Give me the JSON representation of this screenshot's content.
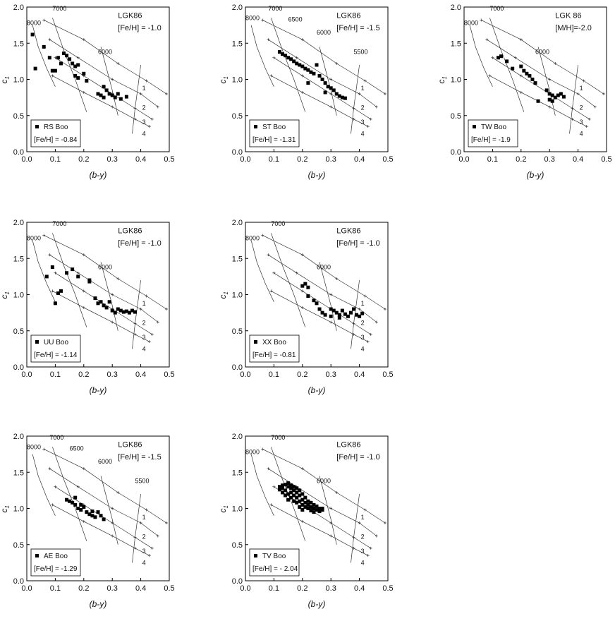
{
  "chart_data": [
    {
      "type": "scatter",
      "star": "RS Boo",
      "metal": "[Fe/H] = -0.84",
      "grid_name": "LGK86",
      "grid_metal": "[Fe/H] = -1.0",
      "xlabel": "(b-y)",
      "ylabel": "c1",
      "xlim": [
        0,
        0.5
      ],
      "ylim": [
        0,
        2.0
      ],
      "xticks": [
        "0.0",
        "0.1",
        "0.2",
        "0.3",
        "0.4",
        "0.5"
      ],
      "yticks": [
        "0.0",
        "0.5",
        "1.0",
        "1.5",
        "2.0"
      ],
      "temp_labels": [
        "8000",
        "7000",
        "6000"
      ],
      "logg_labels": [
        "1",
        "2",
        "3",
        "4"
      ],
      "values": [
        [
          0.02,
          1.62
        ],
        [
          0.06,
          1.45
        ],
        [
          0.08,
          1.3
        ],
        [
          0.1,
          1.12
        ],
        [
          0.11,
          1.3
        ],
        [
          0.12,
          1.22
        ],
        [
          0.13,
          1.36
        ],
        [
          0.14,
          1.33
        ],
        [
          0.15,
          1.28
        ],
        [
          0.16,
          1.22
        ],
        [
          0.17,
          1.18
        ],
        [
          0.18,
          1.2
        ],
        [
          0.17,
          1.05
        ],
        [
          0.18,
          1.02
        ],
        [
          0.2,
          1.08
        ],
        [
          0.21,
          0.98
        ],
        [
          0.25,
          0.8
        ],
        [
          0.26,
          0.78
        ],
        [
          0.27,
          0.9
        ],
        [
          0.27,
          0.75
        ],
        [
          0.28,
          0.85
        ],
        [
          0.29,
          0.8
        ],
        [
          0.3,
          0.78
        ],
        [
          0.31,
          0.75
        ],
        [
          0.32,
          0.8
        ],
        [
          0.33,
          0.73
        ],
        [
          0.35,
          0.76
        ],
        [
          0.03,
          1.15
        ],
        [
          0.09,
          1.12
        ]
      ]
    },
    {
      "type": "scatter",
      "star": "ST Boo",
      "metal": "[Fe/H] = -1.31",
      "grid_name": "LGK86",
      "grid_metal": "[Fe/H] = -1.5",
      "xlabel": "(b-y)",
      "ylabel": "c1",
      "xlim": [
        0,
        0.5
      ],
      "ylim": [
        0,
        2.0
      ],
      "xticks": [
        "0.0",
        "0.1",
        "0.2",
        "0.3",
        "0.4",
        "0.5"
      ],
      "yticks": [
        "0.0",
        "0.5",
        "1.0",
        "1.5",
        "2.0"
      ],
      "temp_labels": [
        "8000",
        "7000",
        "6500",
        "6000",
        "5500"
      ],
      "logg_labels": [
        "1",
        "2",
        "3",
        "4"
      ],
      "values": [
        [
          0.12,
          1.38
        ],
        [
          0.13,
          1.35
        ],
        [
          0.14,
          1.33
        ],
        [
          0.15,
          1.3
        ],
        [
          0.16,
          1.28
        ],
        [
          0.17,
          1.25
        ],
        [
          0.18,
          1.22
        ],
        [
          0.19,
          1.2
        ],
        [
          0.2,
          1.18
        ],
        [
          0.21,
          1.15
        ],
        [
          0.22,
          1.13
        ],
        [
          0.23,
          1.1
        ],
        [
          0.24,
          1.08
        ],
        [
          0.25,
          1.2
        ],
        [
          0.26,
          1.05
        ],
        [
          0.27,
          1.0
        ],
        [
          0.28,
          0.95
        ],
        [
          0.29,
          0.9
        ],
        [
          0.3,
          0.88
        ],
        [
          0.31,
          0.85
        ],
        [
          0.32,
          0.8
        ],
        [
          0.33,
          0.77
        ],
        [
          0.34,
          0.75
        ],
        [
          0.35,
          0.74
        ],
        [
          0.22,
          0.95
        ],
        [
          0.28,
          0.82
        ]
      ]
    },
    {
      "type": "scatter",
      "star": "TW Boo",
      "metal": "[Fe/H] = -1.9",
      "grid_name": "LGK 86",
      "grid_metal": "[M/H]=-2.0",
      "xlabel": "(b-y)",
      "ylabel": "c1",
      "xlim": [
        0,
        0.5
      ],
      "ylim": [
        0,
        2.0
      ],
      "xticks": [
        "0.0",
        "0.1",
        "0.2",
        "0.3",
        "0.4",
        "0.5"
      ],
      "yticks": [
        "0.0",
        "0.5",
        "1.0",
        "1.5",
        "2.0"
      ],
      "temp_labels": [
        "8000",
        "7000",
        "6000"
      ],
      "logg_labels": [
        "1",
        "2",
        "3",
        "4"
      ],
      "values": [
        [
          0.12,
          1.3
        ],
        [
          0.13,
          1.32
        ],
        [
          0.15,
          1.25
        ],
        [
          0.17,
          1.15
        ],
        [
          0.2,
          1.18
        ],
        [
          0.21,
          1.12
        ],
        [
          0.22,
          1.08
        ],
        [
          0.23,
          1.05
        ],
        [
          0.24,
          1.0
        ],
        [
          0.25,
          0.95
        ],
        [
          0.26,
          0.7
        ],
        [
          0.29,
          0.85
        ],
        [
          0.3,
          0.8
        ],
        [
          0.31,
          0.78
        ],
        [
          0.32,
          0.75
        ],
        [
          0.33,
          0.78
        ],
        [
          0.34,
          0.8
        ],
        [
          0.35,
          0.76
        ],
        [
          0.3,
          0.72
        ],
        [
          0.31,
          0.7
        ]
      ]
    },
    {
      "type": "scatter",
      "star": "UU Boo",
      "metal": "[Fe/H] = -1.14",
      "grid_name": "LGK86",
      "grid_metal": "[Fe/H] = -1.0",
      "xlabel": "(b-y)",
      "ylabel": "c1",
      "xlim": [
        0,
        0.5
      ],
      "ylim": [
        0,
        2.0
      ],
      "xticks": [
        "0.0",
        "0.1",
        "0.2",
        "0.3",
        "0.4",
        "0.5"
      ],
      "yticks": [
        "0.0",
        "0.5",
        "1.0",
        "1.5",
        "2.0"
      ],
      "temp_labels": [
        "8000",
        "7000",
        "6000"
      ],
      "logg_labels": [
        "1",
        "2",
        "3",
        "4"
      ],
      "values": [
        [
          0.07,
          1.25
        ],
        [
          0.09,
          1.38
        ],
        [
          0.1,
          0.88
        ],
        [
          0.11,
          1.02
        ],
        [
          0.12,
          1.05
        ],
        [
          0.14,
          1.3
        ],
        [
          0.16,
          1.35
        ],
        [
          0.18,
          1.25
        ],
        [
          0.22,
          1.2
        ],
        [
          0.24,
          0.95
        ],
        [
          0.25,
          0.88
        ],
        [
          0.26,
          0.9
        ],
        [
          0.27,
          0.85
        ],
        [
          0.28,
          0.82
        ],
        [
          0.29,
          0.9
        ],
        [
          0.3,
          0.78
        ],
        [
          0.31,
          0.75
        ],
        [
          0.32,
          0.8
        ],
        [
          0.33,
          0.78
        ],
        [
          0.34,
          0.76
        ],
        [
          0.35,
          0.77
        ],
        [
          0.36,
          0.75
        ],
        [
          0.37,
          0.78
        ],
        [
          0.38,
          0.76
        ],
        [
          0.22,
          1.18
        ]
      ]
    },
    {
      "type": "scatter",
      "star": "XX Boo",
      "metal": "[Fe/H] = -0.81",
      "grid_name": "LGK86",
      "grid_metal": "[Fe/H] = -1.0",
      "xlabel": "(b-y)",
      "ylabel": "c1",
      "xlim": [
        0,
        0.5
      ],
      "ylim": [
        0,
        2.0
      ],
      "xticks": [
        "0.0",
        "0.1",
        "0.2",
        "0.3",
        "0.4",
        "0.5"
      ],
      "yticks": [
        "0.0",
        "0.5",
        "1.0",
        "1.5",
        "2.0"
      ],
      "temp_labels": [
        "8000",
        "7000",
        "6000"
      ],
      "logg_labels": [
        "1",
        "2",
        "3",
        "4"
      ],
      "values": [
        [
          0.2,
          1.12
        ],
        [
          0.21,
          1.15
        ],
        [
          0.22,
          1.1
        ],
        [
          0.22,
          0.98
        ],
        [
          0.24,
          0.92
        ],
        [
          0.25,
          0.88
        ],
        [
          0.26,
          0.8
        ],
        [
          0.27,
          0.75
        ],
        [
          0.28,
          0.72
        ],
        [
          0.3,
          0.8
        ],
        [
          0.31,
          0.78
        ],
        [
          0.32,
          0.75
        ],
        [
          0.33,
          0.72
        ],
        [
          0.34,
          0.78
        ],
        [
          0.35,
          0.73
        ],
        [
          0.36,
          0.7
        ],
        [
          0.37,
          0.75
        ],
        [
          0.38,
          0.8
        ],
        [
          0.39,
          0.72
        ],
        [
          0.4,
          0.7
        ],
        [
          0.41,
          0.74
        ],
        [
          0.3,
          0.7
        ],
        [
          0.33,
          0.68
        ]
      ]
    },
    {
      "type": "scatter",
      "star": "AE Boo",
      "metal": "[Fe/H] = -1.29",
      "grid_name": "LGK86",
      "grid_metal": "[Fe/H] = -1.5",
      "xlabel": "(b-y)",
      "ylabel": "c1",
      "xlim": [
        0,
        0.5
      ],
      "ylim": [
        0,
        2.0
      ],
      "xticks": [
        "0.0",
        "0.1",
        "0.2",
        "0.3",
        "0.4",
        "0.5"
      ],
      "yticks": [
        "0.0",
        "0.5",
        "1.0",
        "1.5",
        "2.0"
      ],
      "temp_labels": [
        "8000",
        "7000",
        "6500",
        "6000",
        "5500"
      ],
      "logg_labels": [
        "1",
        "2",
        "3",
        "4"
      ],
      "values": [
        [
          0.14,
          1.12
        ],
        [
          0.15,
          1.1
        ],
        [
          0.16,
          1.08
        ],
        [
          0.17,
          1.15
        ],
        [
          0.17,
          1.05
        ],
        [
          0.18,
          1.0
        ],
        [
          0.19,
          0.98
        ],
        [
          0.2,
          1.02
        ],
        [
          0.21,
          0.95
        ],
        [
          0.22,
          0.92
        ],
        [
          0.23,
          0.9
        ],
        [
          0.24,
          0.88
        ],
        [
          0.25,
          0.95
        ],
        [
          0.26,
          0.9
        ],
        [
          0.27,
          0.85
        ],
        [
          0.23,
          0.96
        ],
        [
          0.19,
          1.05
        ]
      ]
    },
    {
      "type": "scatter",
      "star": "TV Boo",
      "metal": "[Fe/H] = - 2.04",
      "grid_name": "LGK86",
      "grid_metal": "[Fe/H] = -1.0",
      "xlabel": "(b-y)",
      "ylabel": "c1",
      "xlim": [
        0,
        0.5
      ],
      "ylim": [
        0,
        2.0
      ],
      "xticks": [
        "0.0",
        "0.1",
        "0.2",
        "0.3",
        "0.4",
        "0.5"
      ],
      "yticks": [
        "0.0",
        "0.5",
        "1.0",
        "1.5",
        "2.0"
      ],
      "temp_labels": [
        "8000",
        "7000",
        "6000"
      ],
      "logg_labels": [
        "1",
        "2",
        "3",
        "4"
      ],
      "values": [
        [
          0.12,
          1.3
        ],
        [
          0.13,
          1.28
        ],
        [
          0.13,
          1.32
        ],
        [
          0.14,
          1.25
        ],
        [
          0.14,
          1.33
        ],
        [
          0.15,
          1.2
        ],
        [
          0.15,
          1.3
        ],
        [
          0.15,
          1.35
        ],
        [
          0.16,
          1.28
        ],
        [
          0.16,
          1.22
        ],
        [
          0.16,
          1.32
        ],
        [
          0.17,
          1.25
        ],
        [
          0.17,
          1.18
        ],
        [
          0.17,
          1.3
        ],
        [
          0.18,
          1.15
        ],
        [
          0.18,
          1.22
        ],
        [
          0.18,
          1.28
        ],
        [
          0.19,
          1.1
        ],
        [
          0.19,
          1.18
        ],
        [
          0.19,
          1.25
        ],
        [
          0.2,
          1.12
        ],
        [
          0.2,
          1.05
        ],
        [
          0.2,
          1.2
        ],
        [
          0.21,
          1.08
        ],
        [
          0.21,
          1.15
        ],
        [
          0.21,
          1.02
        ],
        [
          0.22,
          1.05
        ],
        [
          0.22,
          1.1
        ],
        [
          0.22,
          1.0
        ],
        [
          0.23,
          1.02
        ],
        [
          0.23,
          1.08
        ],
        [
          0.24,
          1.0
        ],
        [
          0.24,
          1.05
        ],
        [
          0.25,
          0.98
        ],
        [
          0.25,
          1.03
        ],
        [
          0.26,
          1.0
        ],
        [
          0.26,
          0.96
        ],
        [
          0.27,
          1.0
        ],
        [
          0.27,
          0.98
        ],
        [
          0.14,
          1.18
        ],
        [
          0.15,
          1.12
        ],
        [
          0.16,
          1.15
        ],
        [
          0.17,
          1.1
        ],
        [
          0.18,
          1.08
        ],
        [
          0.19,
          1.02
        ],
        [
          0.2,
          0.98
        ],
        [
          0.13,
          1.22
        ],
        [
          0.12,
          1.26
        ],
        [
          0.24,
          0.95
        ],
        [
          0.23,
          0.97
        ]
      ]
    }
  ]
}
